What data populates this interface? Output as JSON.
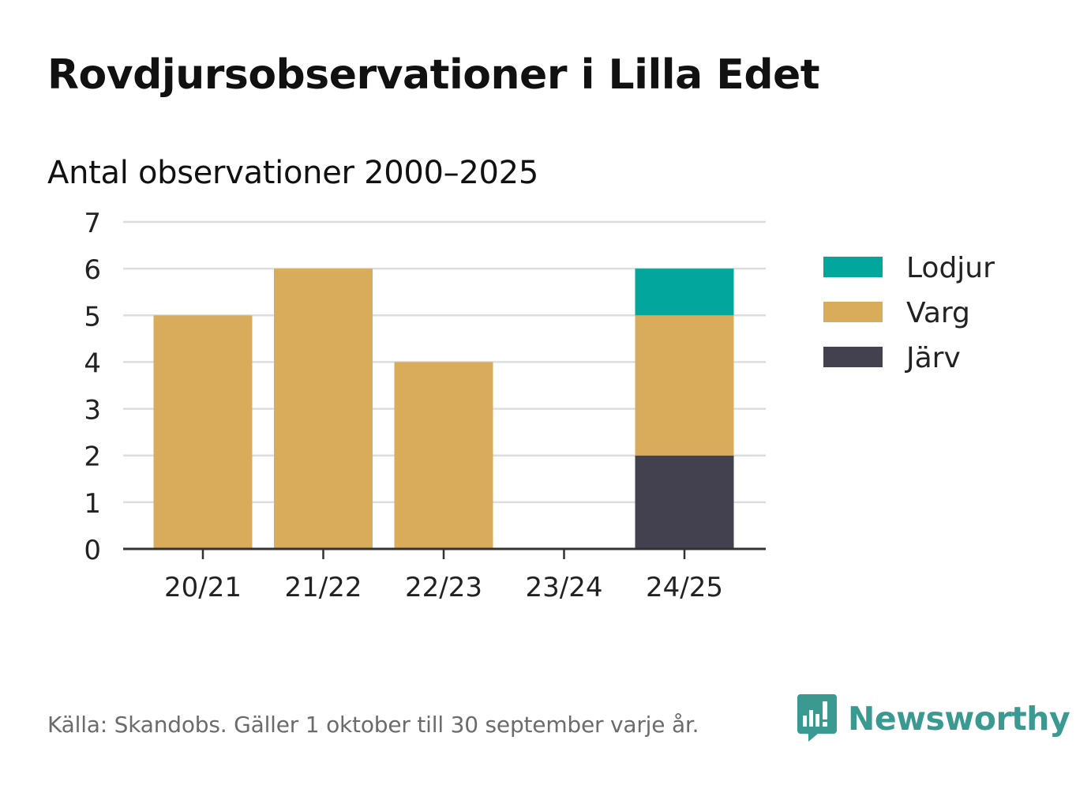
{
  "title": "Rovdjursobservationer i Lilla Edet",
  "footer": {
    "source": "Källa: Skandobs. Gäller 1 oktober till 30 september varje år.",
    "brand": "Newsworthy"
  },
  "colors": {
    "Lodjur": "#02a69a",
    "Varg": "#d8ac5a",
    "Järv": "#434150",
    "brand": "#3a9a91",
    "grid": "#dddddd",
    "axis": "#333333"
  },
  "chart_data": {
    "type": "bar",
    "stacked": true,
    "title": "Antal observationer 2000–2025",
    "xlabel": "",
    "ylabel": "",
    "categories": [
      "20/21",
      "21/22",
      "22/23",
      "23/24",
      "24/25"
    ],
    "series": [
      {
        "name": "Järv",
        "values": [
          0,
          0,
          0,
          0,
          2
        ]
      },
      {
        "name": "Varg",
        "values": [
          5,
          6,
          4,
          0,
          3
        ]
      },
      {
        "name": "Lodjur",
        "values": [
          0,
          0,
          0,
          0,
          1
        ]
      }
    ],
    "legend": [
      "Lodjur",
      "Varg",
      "Järv"
    ],
    "legend_position": "right",
    "ylim": [
      0,
      7
    ],
    "yticks": [
      "0",
      "1",
      "2",
      "3",
      "4",
      "5",
      "6",
      "7"
    ],
    "grid": true
  }
}
